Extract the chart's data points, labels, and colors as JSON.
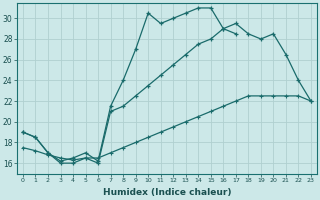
{
  "xlabel": "Humidex (Indice chaleur)",
  "bg_color": "#cce8e8",
  "grid_color": "#b0d0d0",
  "line_color": "#1a6b6b",
  "xlim": [
    -0.5,
    23.5
  ],
  "ylim": [
    15.0,
    31.5
  ],
  "xticks": [
    0,
    1,
    2,
    3,
    4,
    5,
    6,
    7,
    8,
    9,
    10,
    11,
    12,
    13,
    14,
    15,
    16,
    17,
    18,
    19,
    20,
    21,
    22,
    23
  ],
  "yticks": [
    16,
    18,
    20,
    22,
    24,
    26,
    28,
    30
  ],
  "line1_y": [
    19.0,
    18.5,
    17.0,
    16.2,
    16.5,
    17.0,
    16.2,
    21.5,
    24.0,
    27.0,
    30.5,
    29.5,
    30.0,
    30.5,
    31.0,
    31.0,
    29.0,
    28.5,
    null,
    null,
    null,
    null,
    null,
    null
  ],
  "line2_y": [
    19.0,
    18.5,
    17.0,
    16.0,
    16.0,
    16.5,
    16.0,
    21.0,
    21.5,
    22.5,
    23.5,
    24.5,
    25.5,
    26.5,
    27.5,
    28.0,
    29.0,
    29.5,
    28.5,
    28.0,
    28.5,
    26.5,
    24.0,
    22.0
  ],
  "line3_y": [
    17.5,
    17.2,
    16.8,
    16.5,
    16.3,
    16.5,
    16.5,
    17.0,
    17.5,
    18.0,
    18.5,
    19.0,
    19.5,
    20.0,
    20.5,
    21.0,
    21.5,
    22.0,
    22.5,
    22.5,
    22.5,
    22.5,
    22.5,
    22.0
  ]
}
